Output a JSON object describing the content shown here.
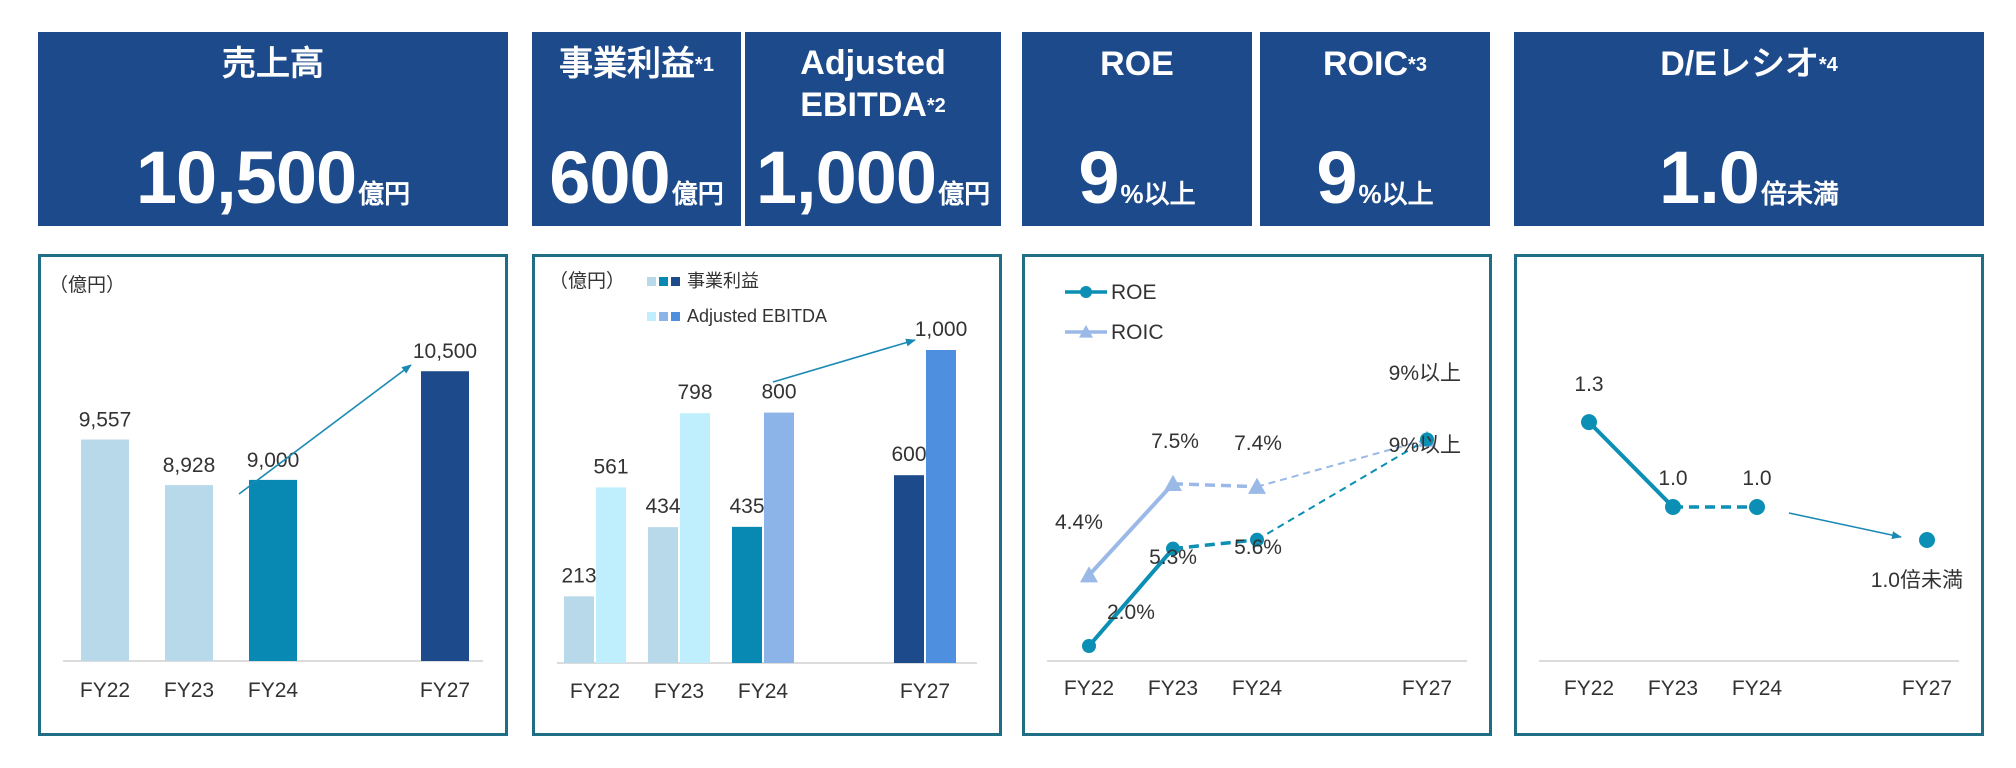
{
  "kpis": {
    "sales": {
      "title": "売上高",
      "sup": "",
      "value": "10,500",
      "unit": "億円"
    },
    "op": {
      "title": "事業利益",
      "sup": "*1",
      "value": "600",
      "unit": "億円"
    },
    "ebitda": {
      "title1": "Adjusted",
      "title2": "EBITDA",
      "sup": "*2",
      "value": "1,000",
      "unit": "億円"
    },
    "roe": {
      "title": "ROE",
      "sup": "",
      "value": "9",
      "unit": "%以上"
    },
    "roic": {
      "title": "ROIC",
      "sup": "*3",
      "value": "9",
      "unit": "%以上"
    },
    "de": {
      "title": "D/Eレシオ",
      "sup": "*4",
      "value": "1.0",
      "unit": "倍未満"
    }
  },
  "colors": {
    "header_bg": "#1d4a8a",
    "border": "#1f6e86",
    "pale_blue": "#b8d9ea",
    "cyan_light": "#bfeefc",
    "teal": "#0789b4",
    "navy": "#1d4a8a",
    "periwinkle": "#8db4e8",
    "ebitda_fy27": "#4f8fe0",
    "roe_line": "#0b8fb4",
    "roic_line": "#9ab9e6"
  },
  "chart_data": [
    {
      "type": "bar",
      "title": "売上高",
      "unit_label": "（億円）",
      "categories": [
        "FY22",
        "FY23",
        "FY24",
        "FY27"
      ],
      "values": [
        9557,
        8928,
        9000,
        10500
      ],
      "value_labels": [
        "9,557",
        "8,928",
        "9,000",
        "10,500"
      ],
      "ylim": [
        6500,
        11000
      ]
    },
    {
      "type": "bar",
      "unit_label": "（億円）",
      "categories": [
        "FY22",
        "FY23",
        "FY24",
        "FY27"
      ],
      "legend": [
        "事業利益",
        "Adjusted EBITDA"
      ],
      "series": [
        {
          "name": "事業利益",
          "values": [
            213,
            434,
            435,
            600
          ],
          "value_labels": [
            "213",
            "434",
            "435",
            "600"
          ]
        },
        {
          "name": "Adjusted EBITDA",
          "values": [
            561,
            798,
            800,
            1000
          ],
          "value_labels": [
            "561",
            "798",
            "800",
            "1,000"
          ]
        }
      ],
      "ylim": [
        0,
        1000
      ]
    },
    {
      "type": "line",
      "categories": [
        "FY22",
        "FY23",
        "FY24",
        "FY27"
      ],
      "series": [
        {
          "name": "ROE",
          "values": [
            2.0,
            5.3,
            5.6,
            9.0
          ],
          "value_labels": [
            "2.0%",
            "5.3%",
            "5.6%",
            "9%以上"
          ]
        },
        {
          "name": "ROIC",
          "values": [
            4.4,
            7.5,
            7.4,
            9.0
          ],
          "value_labels": [
            "4.4%",
            "7.5%",
            "7.4%",
            "9%以上"
          ]
        }
      ],
      "ylim": [
        0,
        12
      ]
    },
    {
      "type": "line",
      "categories": [
        "FY22",
        "FY23",
        "FY24",
        "FY27"
      ],
      "series": [
        {
          "name": "D/Eレシオ",
          "values": [
            1.3,
            1.0,
            1.0,
            1.0
          ],
          "value_labels": [
            "1.3",
            "1.0",
            "1.0",
            "1.0倍未満"
          ]
        }
      ],
      "ylim": [
        0,
        1.6
      ]
    }
  ]
}
